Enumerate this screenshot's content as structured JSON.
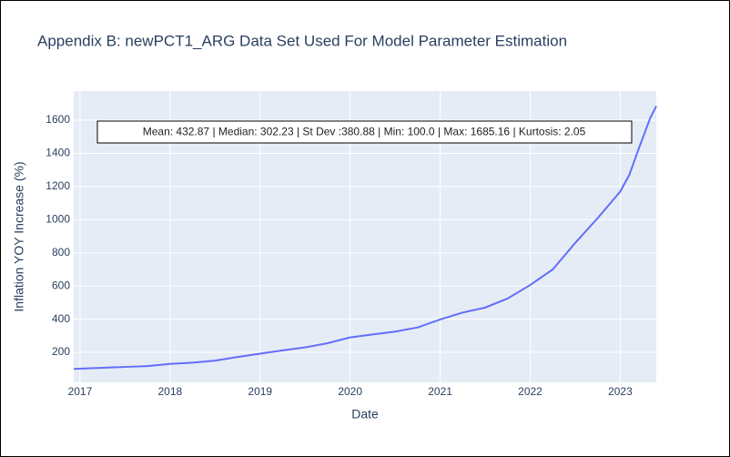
{
  "chart_data": {
    "type": "line",
    "title": "Appendix B: newPCT1_ARG Data Set Used For Model Parameter Estimation",
    "x_label": "Date",
    "y_label": "Inflation YOY Increase (%)",
    "annotation": "Mean: 432.87 | Median: 302.23 | St Dev :380.88 | Min: 100.0 | Max: 1685.16 | Kurtosis: 2.05",
    "x": [
      2016.93,
      2017.25,
      2017.5,
      2017.75,
      2018,
      2018.25,
      2018.5,
      2018.75,
      2019,
      2019.25,
      2019.5,
      2019.75,
      2020,
      2020.25,
      2020.5,
      2020.75,
      2021,
      2021.25,
      2021.5,
      2021.75,
      2022,
      2022.25,
      2022.5,
      2022.75,
      2023,
      2023.1,
      2023.2,
      2023.33,
      2023.4
    ],
    "series": [
      {
        "name": "newPCT1_ARG",
        "color": "#636efa",
        "values": [
          100,
          107,
          112,
          117,
          130,
          138,
          150,
          172,
          192,
          212,
          230,
          255,
          290,
          308,
          325,
          350,
          398,
          440,
          470,
          525,
          606,
          700,
          860,
          1010,
          1170,
          1270,
          1420,
          1610,
          1685
        ]
      }
    ],
    "xlim": [
      2016.93,
      2023.4
    ],
    "ylim": [
      19,
      1776
    ],
    "xticks": [
      2017,
      2018,
      2019,
      2020,
      2021,
      2022,
      2023
    ],
    "yticks": [
      200,
      400,
      600,
      800,
      1000,
      1200,
      1400,
      1600
    ],
    "grid": true
  }
}
